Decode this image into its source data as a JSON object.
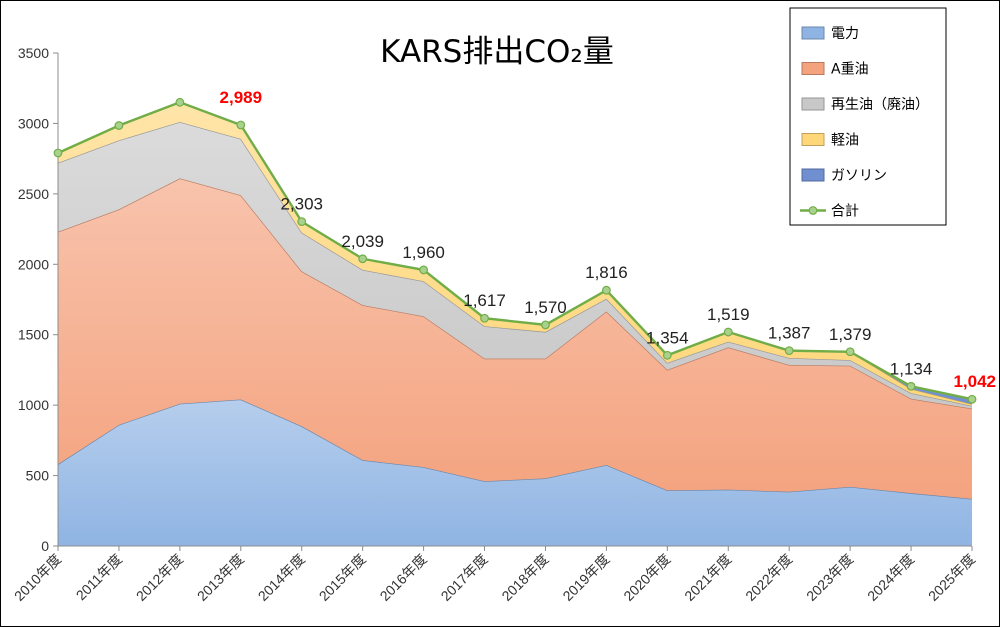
{
  "chart_data": {
    "type": "area",
    "title": "KARS排出CO₂量",
    "categories": [
      "2010年度",
      "2011年度",
      "2012年度",
      "2013年度",
      "2014年度",
      "2015年度",
      "2016年度",
      "2017年度",
      "2018年度",
      "2019年度",
      "2020年度",
      "2021年度",
      "2022年度",
      "2023年度",
      "2024年度",
      "2025年度"
    ],
    "ylim": [
      0,
      3500
    ],
    "yticks": [
      "0",
      "500",
      "1000",
      "1500",
      "2000",
      "2500",
      "3000",
      "3500"
    ],
    "stacked": true,
    "series": [
      {
        "name": "電力",
        "color": "#8fb4e3",
        "values": [
          580,
          860,
          1010,
          1040,
          850,
          610,
          560,
          460,
          480,
          575,
          395,
          400,
          385,
          420,
          375,
          335
        ]
      },
      {
        "name": "A重油",
        "color": "#f4a37f",
        "values": [
          1650,
          1530,
          1600,
          1450,
          1100,
          1100,
          1070,
          870,
          850,
          1090,
          855,
          1010,
          900,
          860,
          670,
          640
        ]
      },
      {
        "name": "再生油（廃油）",
        "color": "#c8c8c8",
        "values": [
          490,
          490,
          400,
          400,
          275,
          250,
          250,
          230,
          190,
          90,
          50,
          40,
          50,
          40,
          40,
          20
        ]
      },
      {
        "name": "軽油",
        "color": "#ffd77a",
        "values": [
          70,
          105,
          140,
          99,
          78,
          79,
          80,
          57,
          50,
          61,
          54,
          69,
          52,
          59,
          30,
          12
        ]
      },
      {
        "name": "ガソリン",
        "color": "#6f8fd1",
        "values": [
          0,
          0,
          0,
          0,
          0,
          0,
          0,
          0,
          0,
          0,
          0,
          0,
          0,
          0,
          19,
          35
        ]
      }
    ],
    "total": {
      "name": "合計",
      "color": "#70ad47",
      "values": [
        2790,
        2985,
        3150,
        2989,
        2303,
        2039,
        1960,
        1617,
        1570,
        1816,
        1354,
        1519,
        1387,
        1379,
        1134,
        1042
      ]
    },
    "data_labels": [
      {
        "index": 3,
        "text": "2,989",
        "highlight": true
      },
      {
        "index": 4,
        "text": "2,303",
        "highlight": false
      },
      {
        "index": 5,
        "text": "2,039",
        "highlight": false
      },
      {
        "index": 6,
        "text": "1,960",
        "highlight": false
      },
      {
        "index": 7,
        "text": "1,617",
        "highlight": false
      },
      {
        "index": 8,
        "text": "1,570",
        "highlight": false
      },
      {
        "index": 9,
        "text": "1,816",
        "highlight": false
      },
      {
        "index": 10,
        "text": "1,354",
        "highlight": false
      },
      {
        "index": 11,
        "text": "1,519",
        "highlight": false
      },
      {
        "index": 12,
        "text": "1,387",
        "highlight": false
      },
      {
        "index": 13,
        "text": "1,379",
        "highlight": false
      },
      {
        "index": 14,
        "text": "1,134",
        "highlight": false
      },
      {
        "index": 15,
        "text": "1,042",
        "highlight": true
      }
    ],
    "highlight_color": "#ff0000",
    "grid": false,
    "legend_position": "top-right"
  }
}
